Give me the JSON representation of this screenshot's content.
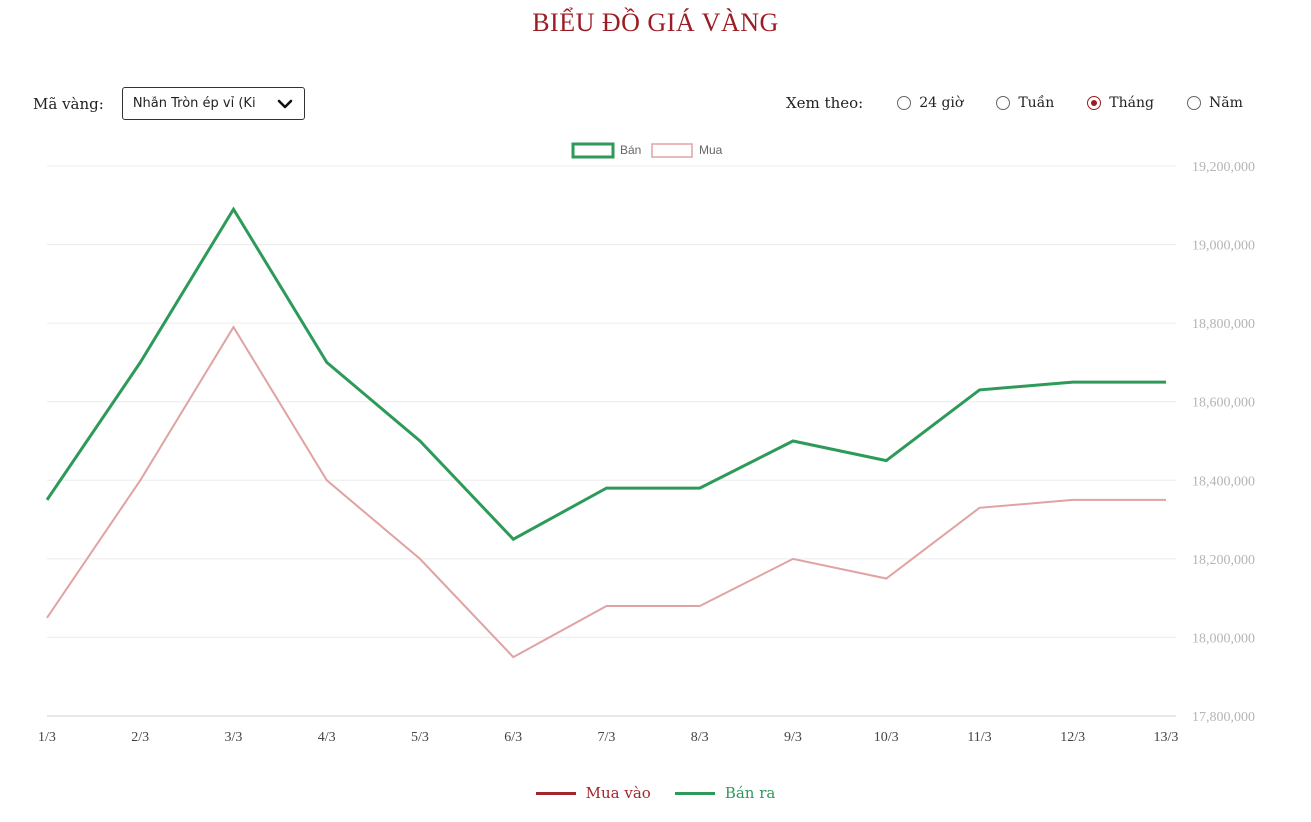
{
  "page": {
    "title": "BIỂU ĐỒ GIÁ VÀNG"
  },
  "controls": {
    "gold_code_label": "Mã vàng:",
    "gold_code_value": "Nhẫn Tròn ép vỉ (Ki",
    "view_by_label": "Xem theo:",
    "periods": [
      {
        "label": "24 giờ",
        "checked": false
      },
      {
        "label": "Tuần",
        "checked": false
      },
      {
        "label": "Tháng",
        "checked": true
      },
      {
        "label": "Năm",
        "checked": false
      }
    ]
  },
  "colors": {
    "accent": "#9b1c24",
    "sell": "#2e9a5a",
    "buy": "#e0a3a3",
    "buy_legend": "#a3262e",
    "grid": "#ececec",
    "tick": "#b5b5b5"
  },
  "bottom_legend": {
    "buy_label": "Mua vào",
    "sell_label": "Bán ra"
  },
  "chart_data": {
    "type": "line",
    "categories": [
      "1/3",
      "2/3",
      "3/3",
      "4/3",
      "5/3",
      "6/3",
      "7/3",
      "8/3",
      "9/3",
      "10/3",
      "11/3",
      "12/3",
      "13/3"
    ],
    "series": [
      {
        "name": "Bán",
        "values": [
          18350000,
          18700000,
          19090000,
          18700000,
          18500000,
          18250000,
          18380000,
          18380000,
          18500000,
          18450000,
          18630000,
          18650000,
          18650000
        ]
      },
      {
        "name": "Mua",
        "values": [
          18050000,
          18400000,
          18790000,
          18400000,
          18200000,
          17950000,
          18080000,
          18080000,
          18200000,
          18150000,
          18330000,
          18350000,
          18350000
        ]
      }
    ],
    "ylim": [
      17800000,
      19200000
    ],
    "yticks": [
      "17,800,000",
      "18,000,000",
      "18,200,000",
      "18,400,000",
      "18,600,000",
      "18,800,000",
      "19,000,000",
      "19,200,000"
    ],
    "y_axis_position": "right",
    "grid": true,
    "legend_position": "top-center"
  }
}
